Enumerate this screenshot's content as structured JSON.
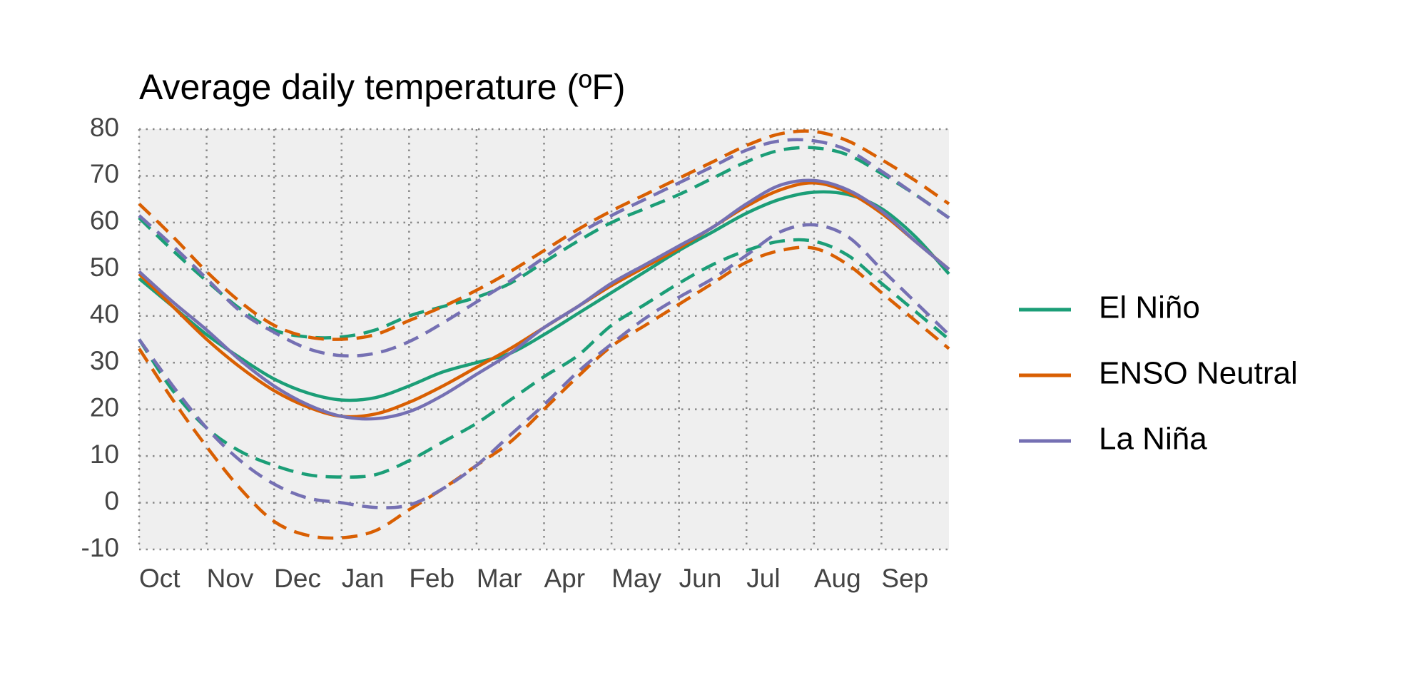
{
  "chart_data": {
    "type": "line",
    "title": "Average daily temperature (ºF)",
    "categories": [
      "Oct",
      null,
      "Nov",
      null,
      "Dec",
      null,
      "Jan",
      null,
      "Feb",
      null,
      "Mar",
      null,
      "Apr",
      null,
      "May",
      null,
      "Jun",
      null,
      "Jul",
      null,
      "Aug",
      null,
      "Sep",
      null,
      null
    ],
    "series": [
      {
        "name": "El Niño",
        "color": "#1b9e77",
        "values": [
          48,
          42,
          36,
          31,
          26.5,
          23.5,
          22,
          22.5,
          25,
          28,
          30,
          32,
          36,
          40.5,
          45,
          49.5,
          54,
          58,
          62,
          65,
          66.5,
          66,
          63,
          57,
          49
        ],
        "upper": [
          61,
          54,
          47.5,
          41.5,
          37,
          35.5,
          35.5,
          37,
          40,
          42,
          44,
          47,
          51.5,
          56,
          60,
          63,
          66,
          69.5,
          73,
          75.5,
          76,
          74.5,
          70.5,
          66,
          61
        ],
        "lower": [
          35,
          24,
          16,
          11,
          8,
          6,
          5.5,
          6,
          9,
          13,
          17,
          22,
          27,
          31.5,
          38,
          42.5,
          47,
          51,
          54,
          56,
          56,
          53,
          47,
          41,
          35
        ]
      },
      {
        "name": "ENSO Neutral",
        "color": "#d95f02",
        "values": [
          49,
          42,
          35,
          29,
          24,
          20.5,
          18.5,
          19,
          21.5,
          25,
          29,
          33,
          37.5,
          42,
          46.5,
          50.5,
          54.5,
          59,
          63.5,
          67,
          68.5,
          66.5,
          62,
          56,
          50
        ],
        "upper": [
          64,
          57,
          49.5,
          43,
          38,
          35.5,
          35,
          36,
          39,
          42,
          45.5,
          49.5,
          54,
          58.5,
          62.5,
          66,
          69.5,
          73,
          76.5,
          79,
          79.5,
          77.5,
          73.5,
          69,
          64
        ],
        "lower": [
          33,
          22,
          12,
          3,
          -4,
          -7,
          -7.5,
          -6,
          -1.5,
          3,
          8,
          13,
          20,
          27,
          33.5,
          38,
          42.5,
          47,
          51.5,
          54,
          54.5,
          51,
          45,
          39,
          33
        ]
      },
      {
        "name": "La Niña",
        "color": "#7570b3",
        "values": [
          49.5,
          43,
          37,
          30.5,
          25,
          21,
          18.5,
          18,
          19.5,
          23,
          27.5,
          32,
          37.5,
          42,
          47,
          51,
          55,
          59,
          64,
          68,
          69,
          67,
          62.5,
          56,
          50
        ],
        "upper": [
          61.5,
          55,
          48,
          41,
          36.5,
          33,
          31.5,
          32,
          34.5,
          38.5,
          43,
          47.5,
          52.5,
          57.5,
          61.5,
          65,
          68.5,
          72,
          75.5,
          77.5,
          77.5,
          75.5,
          71,
          66,
          61
        ],
        "lower": [
          35,
          25,
          16,
          9,
          4,
          1,
          0,
          -1,
          -0.5,
          3,
          8,
          14.5,
          21,
          28,
          34,
          39.5,
          44,
          48,
          53,
          58,
          59.5,
          57,
          50,
          43,
          36
        ]
      }
    ],
    "ylim": [
      -10,
      80
    ],
    "yticks": [
      -10,
      0,
      10,
      20,
      30,
      40,
      50,
      60,
      70,
      80
    ],
    "grid": true,
    "legend": "right",
    "background": "#efefef"
  }
}
